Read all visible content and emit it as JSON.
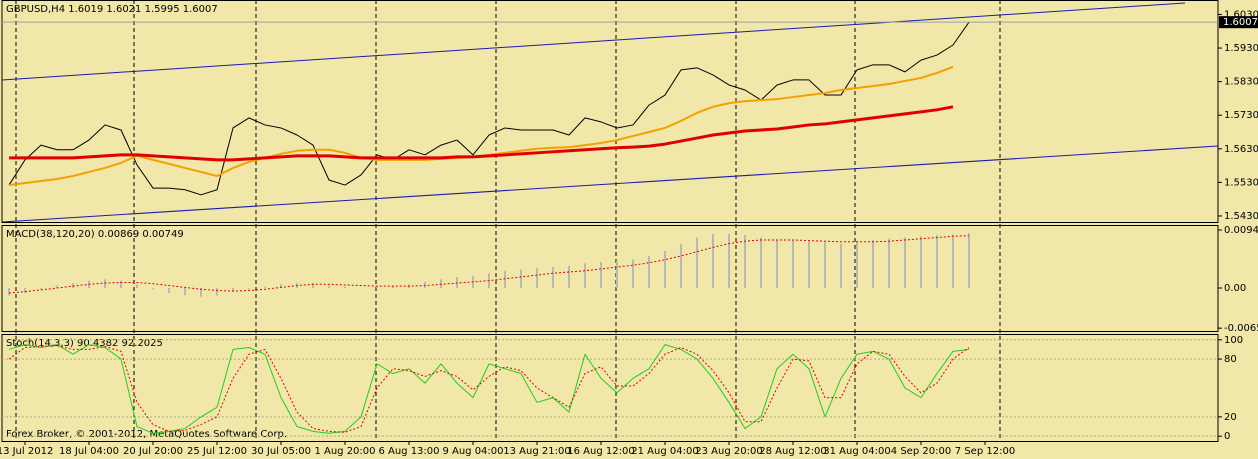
{
  "chart_data": [
    {
      "type": "line",
      "title": "GBPUSD,H4  1.6019 1.6021 1.5995 1.6007",
      "ylim": [
        1.5412,
        1.6073
      ],
      "yticks": [
        {
          "value": 1.543,
          "label": "1.5430"
        },
        {
          "value": 1.553,
          "label": "1.5530"
        },
        {
          "value": 1.563,
          "label": "1.5630"
        },
        {
          "value": 1.573,
          "label": "1.5730"
        },
        {
          "value": 1.583,
          "label": "1.5830"
        },
        {
          "value": 1.593,
          "label": "1.5930"
        },
        {
          "value": 1.603,
          "label": "1.6030"
        }
      ],
      "current_price": 1.6007,
      "series": [
        {
          "kind": "line",
          "color": "#000000",
          "width": 1,
          "values": [
            1.5522,
            1.5597,
            1.5641,
            1.5627,
            1.5627,
            1.5656,
            1.5701,
            1.5686,
            1.5582,
            1.5513,
            1.5513,
            1.5508,
            1.5493,
            1.5508,
            1.5692,
            1.5722,
            1.5701,
            1.5692,
            1.5671,
            1.5641,
            1.5537,
            1.5522,
            1.5552,
            1.5612,
            1.5597,
            1.5627,
            1.5612,
            1.5641,
            1.5656,
            1.5612,
            1.5671,
            1.5692,
            1.5686,
            1.5686,
            1.5686,
            1.5671,
            1.5722,
            1.571,
            1.5692,
            1.5701,
            1.576,
            1.579,
            1.5865,
            1.5871,
            1.585,
            1.582,
            1.5805,
            1.5775,
            1.582,
            1.5835,
            1.5835,
            1.579,
            1.579,
            1.5865,
            1.588,
            1.588,
            1.5859,
            1.5894,
            1.5909,
            1.5939,
            1.6007,
            null
          ]
        },
        {
          "kind": "line",
          "color": "#f5a000",
          "width": 2,
          "values": [
            1.5522,
            1.5528,
            1.5534,
            1.554,
            1.5549,
            1.5561,
            1.5573,
            1.5588,
            1.5609,
            1.5597,
            1.5585,
            1.5573,
            1.5561,
            1.5549,
            1.5573,
            1.5591,
            1.5603,
            1.5615,
            1.5624,
            1.5627,
            1.5627,
            1.5618,
            1.5603,
            1.5597,
            1.5597,
            1.5597,
            1.5597,
            1.56,
            1.5603,
            1.5606,
            1.5612,
            1.5618,
            1.5624,
            1.563,
            1.5633,
            1.5635,
            1.5641,
            1.5647,
            1.5656,
            1.5668,
            1.568,
            1.5692,
            1.5713,
            1.5737,
            1.5755,
            1.5766,
            1.5772,
            1.5775,
            1.5778,
            1.5784,
            1.579,
            1.5796,
            1.5805,
            1.5811,
            1.5817,
            1.5823,
            1.5832,
            1.5841,
            1.5856,
            1.5874,
            null,
            null
          ]
        },
        {
          "kind": "line",
          "color": "#e00000",
          "width": 3,
          "values": [
            1.5603,
            1.5603,
            1.5603,
            1.5603,
            1.5603,
            1.5606,
            1.5609,
            1.5612,
            1.5612,
            1.5609,
            1.5606,
            1.5603,
            1.56,
            1.5597,
            1.5597,
            1.56,
            1.5603,
            1.5606,
            1.5609,
            1.5609,
            1.5609,
            1.5606,
            1.5603,
            1.5603,
            1.5603,
            1.5603,
            1.5603,
            1.5603,
            1.5606,
            1.5606,
            1.5609,
            1.5612,
            1.5615,
            1.5618,
            1.5621,
            1.5624,
            1.5627,
            1.563,
            1.5633,
            1.5635,
            1.5638,
            1.5644,
            1.5653,
            1.5662,
            1.5671,
            1.5677,
            1.5683,
            1.5686,
            1.5689,
            1.5695,
            1.5701,
            1.5704,
            1.571,
            1.5716,
            1.5722,
            1.5728,
            1.5734,
            1.574,
            1.5746,
            1.5755,
            null,
            null
          ]
        }
      ]
    },
    {
      "type": "line",
      "title": "MACD(38,120,20) 0.00869 0.00749",
      "ylim": [
        -0.00698,
        0.01023
      ],
      "yticks": [
        -0.00652,
        {
          "value": 0,
          "label": "0.00"
        },
        0.00942
      ],
      "series": [
        {
          "kind": "bar",
          "color": "#b8b8b8",
          "values": [
            -0.0012,
            -0.0008,
            -0.0002,
            0.0004,
            0.0008,
            0.0012,
            0.0014,
            0.0012,
            0.0006,
            -0.0002,
            -0.0008,
            -0.0012,
            -0.0014,
            -0.0012,
            -0.0006,
            -0.0002,
            0.0002,
            0.0006,
            0.0008,
            0.0008,
            0.0004,
            0.0002,
            0,
            0.0002,
            0.0004,
            0.0006,
            0.001,
            0.0014,
            0.0018,
            0.002,
            0.0024,
            0.0028,
            0.003,
            0.0032,
            0.0034,
            0.0036,
            0.004,
            0.0042,
            0.0044,
            0.0046,
            0.0052,
            0.006,
            0.0072,
            0.0082,
            0.0088,
            0.0088,
            0.0086,
            0.0082,
            0.0078,
            0.0078,
            0.0076,
            0.0074,
            0.0072,
            0.0076,
            0.0078,
            0.008,
            0.0082,
            0.0084,
            0.0086,
            0.0087,
            0.0089,
            null
          ]
        },
        {
          "kind": "line",
          "dashed": true,
          "color": "#e00000",
          "width": 1,
          "values": [
            -0.0008,
            -0.0006,
            -0.0003,
            0,
            0.0003,
            0.0006,
            0.0008,
            0.0009,
            0.0009,
            0.0007,
            0.0004,
            0.0001,
            -0.0002,
            -0.0004,
            -0.0005,
            -0.0004,
            -0.0002,
            0.0001,
            0.0004,
            0.0006,
            0.0006,
            0.0005,
            0.0004,
            0.0003,
            0.0003,
            0.0003,
            0.0004,
            0.0006,
            0.0008,
            0.001,
            0.0012,
            0.0015,
            0.0018,
            0.0021,
            0.0024,
            0.0026,
            0.0028,
            0.0031,
            0.0034,
            0.0037,
            0.0041,
            0.0046,
            0.0052,
            0.0059,
            0.0066,
            0.0072,
            0.0076,
            0.0078,
            0.0078,
            0.0078,
            0.0077,
            0.0076,
            0.0075,
            0.0075,
            0.0075,
            0.0076,
            0.0078,
            0.008,
            0.0082,
            0.0084,
            0.0085,
            null
          ]
        }
      ]
    },
    {
      "type": "line",
      "title": "Stoch(14,3,3) 90.4382 92.2025",
      "ylim": [
        -5,
        106
      ],
      "yticks": [
        0,
        20,
        80,
        100
      ],
      "grid": true,
      "categories": [
        null,
        "13 Jul 2012",
        null,
        null,
        null,
        "18 Jul 04:00",
        null,
        null,
        null,
        "20 Jul 20:00",
        null,
        null,
        null,
        "25 Jul 12:00",
        null,
        null,
        null,
        "30 Jul 05:00",
        null,
        null,
        null,
        "1 Aug 20:00",
        null,
        null,
        null,
        "6 Aug 13:00",
        null,
        null,
        null,
        "9 Aug 04:00",
        null,
        null,
        null,
        "13 Aug 21:00",
        null,
        null,
        null,
        "16 Aug 12:00",
        null,
        null,
        null,
        "21 Aug 04:00",
        null,
        null,
        null,
        "23 Aug 20:00",
        null,
        null,
        null,
        "28 Aug 12:00",
        null,
        null,
        null,
        "31 Aug 04:00",
        null,
        null,
        null,
        "4 Sep 20:00",
        null,
        null,
        null,
        "7 Sep 12:00"
      ],
      "series": [
        {
          "kind": "line",
          "color": "#22cc22",
          "width": 1,
          "values": [
            90,
            95,
            92,
            95,
            85,
            95,
            92,
            80,
            10,
            3,
            5,
            8,
            20,
            30,
            90,
            92,
            85,
            40,
            10,
            5,
            3,
            5,
            20,
            75,
            65,
            70,
            55,
            75,
            55,
            40,
            75,
            70,
            65,
            35,
            40,
            25,
            85,
            60,
            45,
            60,
            70,
            95,
            90,
            80,
            60,
            35,
            8,
            20,
            70,
            85,
            70,
            20,
            60,
            85,
            88,
            80,
            50,
            40,
            65,
            88,
            90,
            null
          ]
        },
        {
          "kind": "line",
          "dashed": true,
          "color": "#e00000",
          "width": 1,
          "values": [
            80,
            92,
            93,
            94,
            90,
            90,
            93,
            88,
            35,
            12,
            5,
            6,
            12,
            20,
            60,
            85,
            90,
            60,
            25,
            8,
            5,
            4,
            10,
            50,
            70,
            68,
            62,
            68,
            62,
            48,
            62,
            72,
            68,
            50,
            40,
            30,
            65,
            72,
            52,
            52,
            65,
            85,
            92,
            85,
            68,
            45,
            15,
            15,
            50,
            80,
            78,
            40,
            40,
            75,
            88,
            85,
            62,
            45,
            55,
            80,
            92,
            null
          ]
        }
      ]
    }
  ],
  "footer": "Forex Broker, © 2001-2012, MetaQuotes Software Corp."
}
